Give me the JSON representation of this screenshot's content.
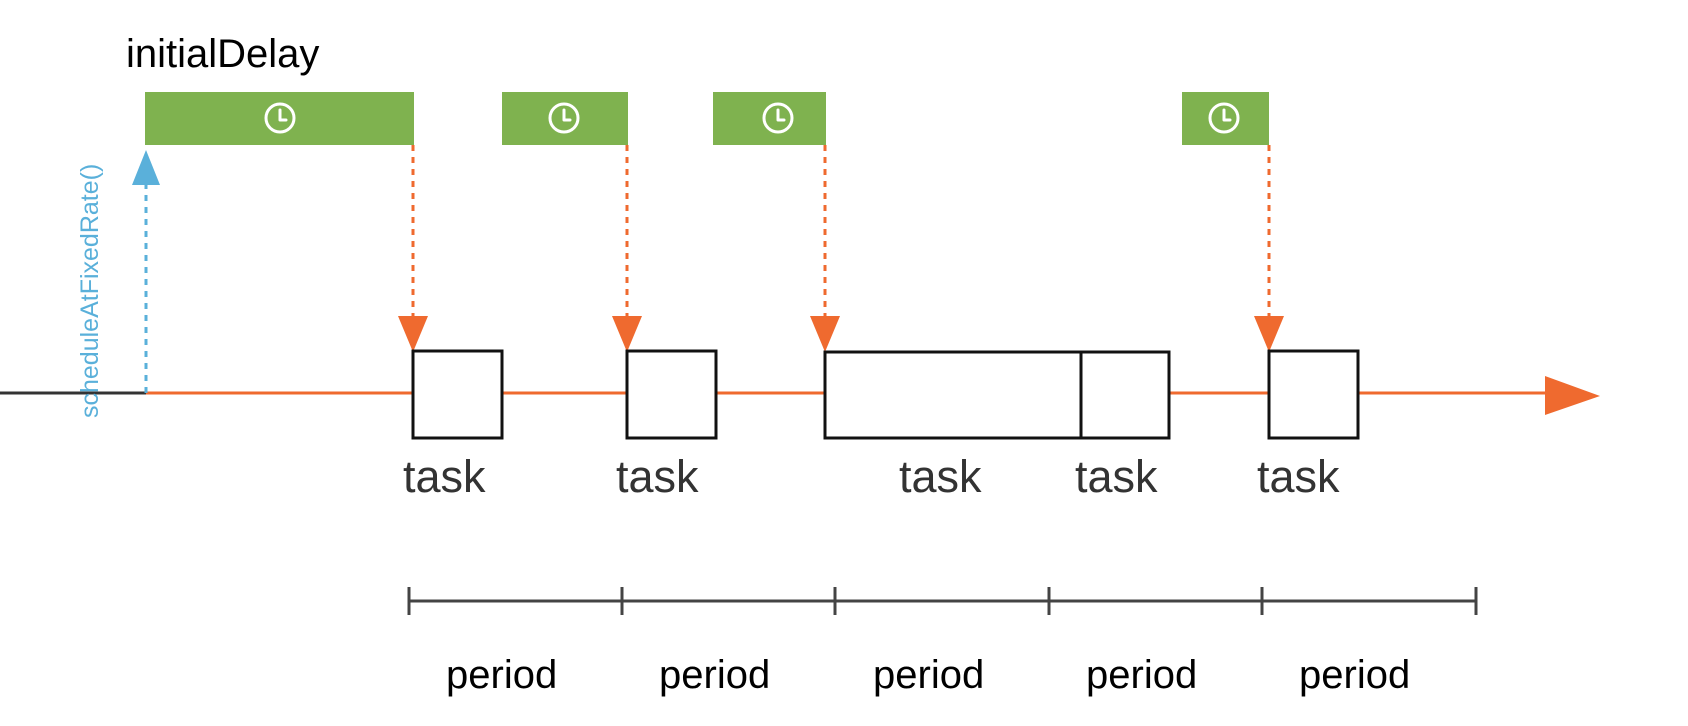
{
  "diagram": {
    "title": "initialDelay",
    "method_label": "scheduleAtFixedRate()",
    "task_label": "task",
    "period_label": "period",
    "tasks": [
      "task",
      "task",
      "task",
      "task",
      "task"
    ],
    "periods": [
      "period",
      "period",
      "period",
      "period",
      "period"
    ],
    "icons": {
      "timer": "clock-icon"
    },
    "colors": {
      "timeline": "#EF6A2F",
      "timer_bar": "#7FB24F",
      "schedule_arrow": "#5AB0DA",
      "task_box_stroke": "#111111",
      "baseline_start": "#333333",
      "scale": "#444444"
    }
  }
}
